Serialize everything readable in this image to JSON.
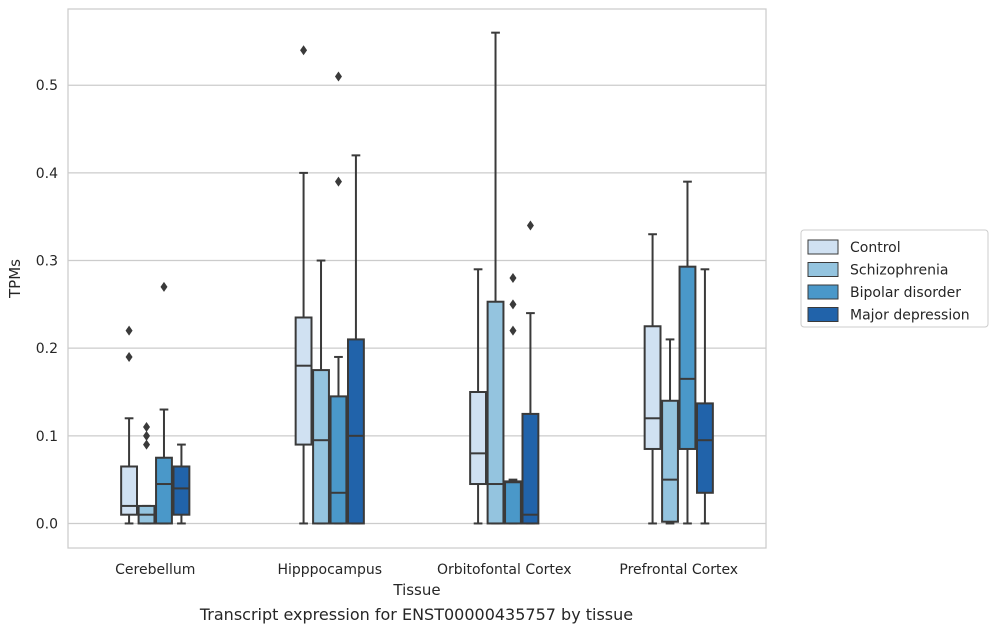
{
  "caption": "Transcript expression for ENST00000435757 by tissue",
  "chart_data": {
    "type": "box",
    "xlabel": "Tissue",
    "ylabel": "TPMs",
    "ylim": [
      -0.028,
      0.587
    ],
    "yticks": [
      0.0,
      0.1,
      0.2,
      0.3,
      0.4,
      0.5
    ],
    "ytick_labels": [
      "0.0",
      "0.1",
      "0.2",
      "0.3",
      "0.4",
      "0.5"
    ],
    "grid": true,
    "legend_position": "right",
    "categories": [
      "Cerebellum",
      "Hipppocampus",
      "Orbitofontal Cortex",
      "Prefrontal Cortex"
    ],
    "series": [
      {
        "name": "Control",
        "color": "#d0e1f2",
        "boxes": [
          {
            "whislo": 0.0,
            "q1": 0.01,
            "med": 0.02,
            "q3": 0.065,
            "whishi": 0.12,
            "fliers": [
              0.19,
              0.22
            ]
          },
          {
            "whislo": 0.0,
            "q1": 0.09,
            "med": 0.18,
            "q3": 0.235,
            "whishi": 0.4,
            "fliers": [
              0.54
            ]
          },
          {
            "whislo": 0.0,
            "q1": 0.045,
            "med": 0.08,
            "q3": 0.15,
            "whishi": 0.29,
            "fliers": []
          },
          {
            "whislo": 0.0,
            "q1": 0.085,
            "med": 0.12,
            "q3": 0.225,
            "whishi": 0.33,
            "fliers": []
          }
        ]
      },
      {
        "name": "Schizophrenia",
        "color": "#94c4df",
        "boxes": [
          {
            "whislo": 0.0,
            "q1": 0.0,
            "med": 0.01,
            "q3": 0.02,
            "whishi": 0.02,
            "fliers": [
              0.09,
              0.1,
              0.11
            ]
          },
          {
            "whislo": 0.0,
            "q1": 0.0,
            "med": 0.095,
            "q3": 0.175,
            "whishi": 0.3,
            "fliers": []
          },
          {
            "whislo": 0.0,
            "q1": 0.0,
            "med": 0.045,
            "q3": 0.253,
            "whishi": 0.56,
            "fliers": []
          },
          {
            "whislo": 0.0,
            "q1": 0.002,
            "med": 0.05,
            "q3": 0.14,
            "whishi": 0.21,
            "fliers": []
          }
        ]
      },
      {
        "name": "Bipolar disorder",
        "color": "#4a98c9",
        "boxes": [
          {
            "whislo": 0.0,
            "q1": 0.0,
            "med": 0.045,
            "q3": 0.075,
            "whishi": 0.13,
            "fliers": [
              0.27
            ]
          },
          {
            "whislo": 0.0,
            "q1": 0.0,
            "med": 0.035,
            "q3": 0.145,
            "whishi": 0.19,
            "fliers": [
              0.39,
              0.51
            ]
          },
          {
            "whislo": 0.0,
            "q1": 0.0,
            "med": 0.047,
            "q3": 0.048,
            "whishi": 0.05,
            "fliers": [
              0.22,
              0.25,
              0.28
            ]
          },
          {
            "whislo": 0.0,
            "q1": 0.085,
            "med": 0.165,
            "q3": 0.293,
            "whishi": 0.39,
            "fliers": []
          }
        ]
      },
      {
        "name": "Major depression",
        "color": "#2163aa",
        "boxes": [
          {
            "whislo": 0.0,
            "q1": 0.01,
            "med": 0.04,
            "q3": 0.065,
            "whishi": 0.09,
            "fliers": []
          },
          {
            "whislo": 0.0,
            "q1": 0.0,
            "med": 0.1,
            "q3": 0.21,
            "whishi": 0.42,
            "fliers": []
          },
          {
            "whislo": 0.0,
            "q1": 0.0,
            "med": 0.01,
            "q3": 0.125,
            "whishi": 0.24,
            "fliers": [
              0.34
            ]
          },
          {
            "whislo": 0.0,
            "q1": 0.035,
            "med": 0.095,
            "q3": 0.137,
            "whishi": 0.29,
            "fliers": []
          }
        ]
      }
    ]
  }
}
